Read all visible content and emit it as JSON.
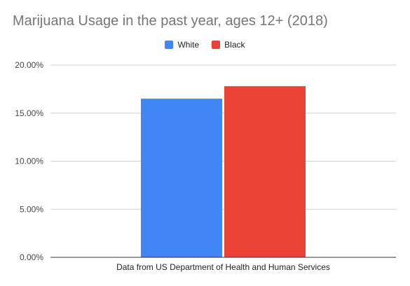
{
  "chart_data": {
    "type": "bar",
    "title": "Marijuana Usage in the past year, ages 12+ (2018)",
    "categories": [
      "Data from US Department of Health and Human Services"
    ],
    "series": [
      {
        "name": "White",
        "color": "#4285f4",
        "values": [
          16.5
        ]
      },
      {
        "name": "Black",
        "color": "#ea4335",
        "values": [
          17.8
        ]
      }
    ],
    "ylim": [
      0,
      20
    ],
    "yticks": [
      0,
      5,
      10,
      15,
      20
    ],
    "ytick_labels": [
      "0.00%",
      "5.00%",
      "10.00%",
      "15.00%",
      "20.00%"
    ],
    "grid": true,
    "legend_position": "top"
  }
}
